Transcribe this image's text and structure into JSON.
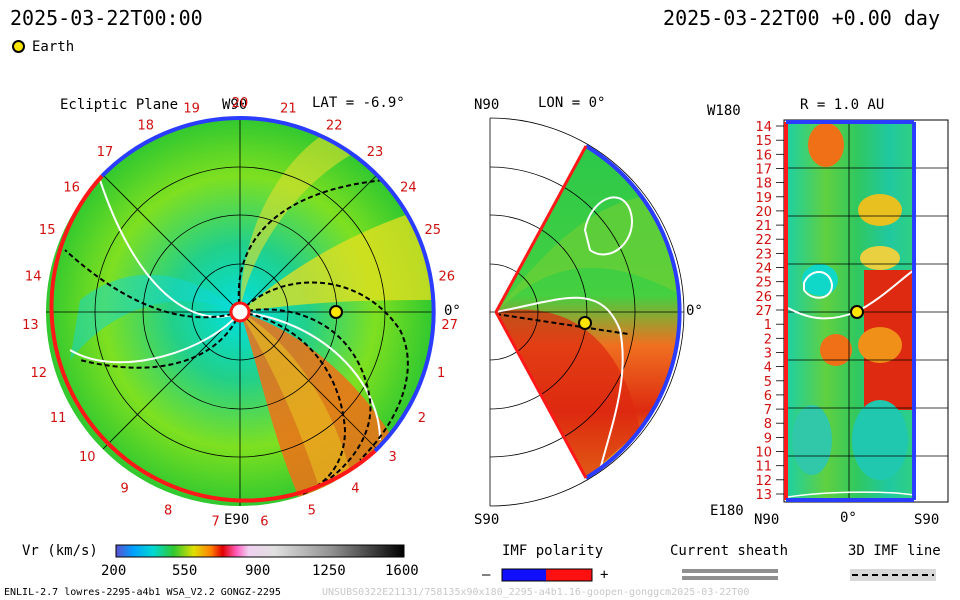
{
  "header": {
    "left_time": "2025-03-22T00:00",
    "right_time": "2025-03-22T00 +0.00 day"
  },
  "legend": {
    "earth_label": "Earth"
  },
  "panels": {
    "ecliptic": {
      "title": "Ecliptic Plane",
      "top_label": "W90",
      "bottom_label": "E90",
      "right_label": "0°",
      "lat_label": "LAT = -6.9°",
      "carrington_ticks": [
        "20",
        "21",
        "22",
        "23",
        "24",
        "25",
        "26",
        "27",
        "1",
        "2",
        "3",
        "4",
        "5",
        "6",
        "7",
        "8",
        "9",
        "10",
        "11",
        "12",
        "13",
        "14",
        "15",
        "16",
        "17",
        "18",
        "19"
      ]
    },
    "meridional": {
      "title_left": "N90",
      "lon_label": "LON = 0°",
      "right_label": "0°",
      "bottom_label": "S90"
    },
    "radial": {
      "top_left": "W180",
      "title": "R = 1.0 AU",
      "bottom_left": "E180",
      "x_left": "N90",
      "x_mid": "0°",
      "x_right": "S90",
      "row_ticks": [
        "14",
        "15",
        "16",
        "17",
        "18",
        "19",
        "20",
        "21",
        "22",
        "23",
        "24",
        "25",
        "26",
        "27",
        "1",
        "2",
        "3",
        "4",
        "5",
        "6",
        "7",
        "8",
        "9",
        "10",
        "11",
        "12",
        "13"
      ]
    }
  },
  "colorbar": {
    "label": "Vr (km/s)",
    "ticks": [
      "200",
      "550",
      "900",
      "1250",
      "1600"
    ],
    "min": 200,
    "max": 1600
  },
  "imf_legend": {
    "title": "IMF polarity",
    "minus": "–",
    "plus": "+"
  },
  "sheath_legend": {
    "title": "Current sheath"
  },
  "imfline_legend": {
    "title": "3D IMF line"
  },
  "footer": {
    "left": "ENLIL-2.7 lowres-2295-a4b1 WSA_V2.2 GONGZ-2295",
    "right": "UNSUBS0322E21131/758135x90x180_2295-a4b1.16-goopen-gonggcm2025-03-22T00"
  },
  "chart_data": {
    "type": "heatmap",
    "quantity": "Vr",
    "unit": "km/s",
    "range": [
      200,
      1600
    ],
    "earth": {
      "lat_deg": -6.9,
      "lon_deg": 0,
      "r_au": 1.0
    },
    "time": "2025-03-22T00:00",
    "lead_days": 0.0
  }
}
